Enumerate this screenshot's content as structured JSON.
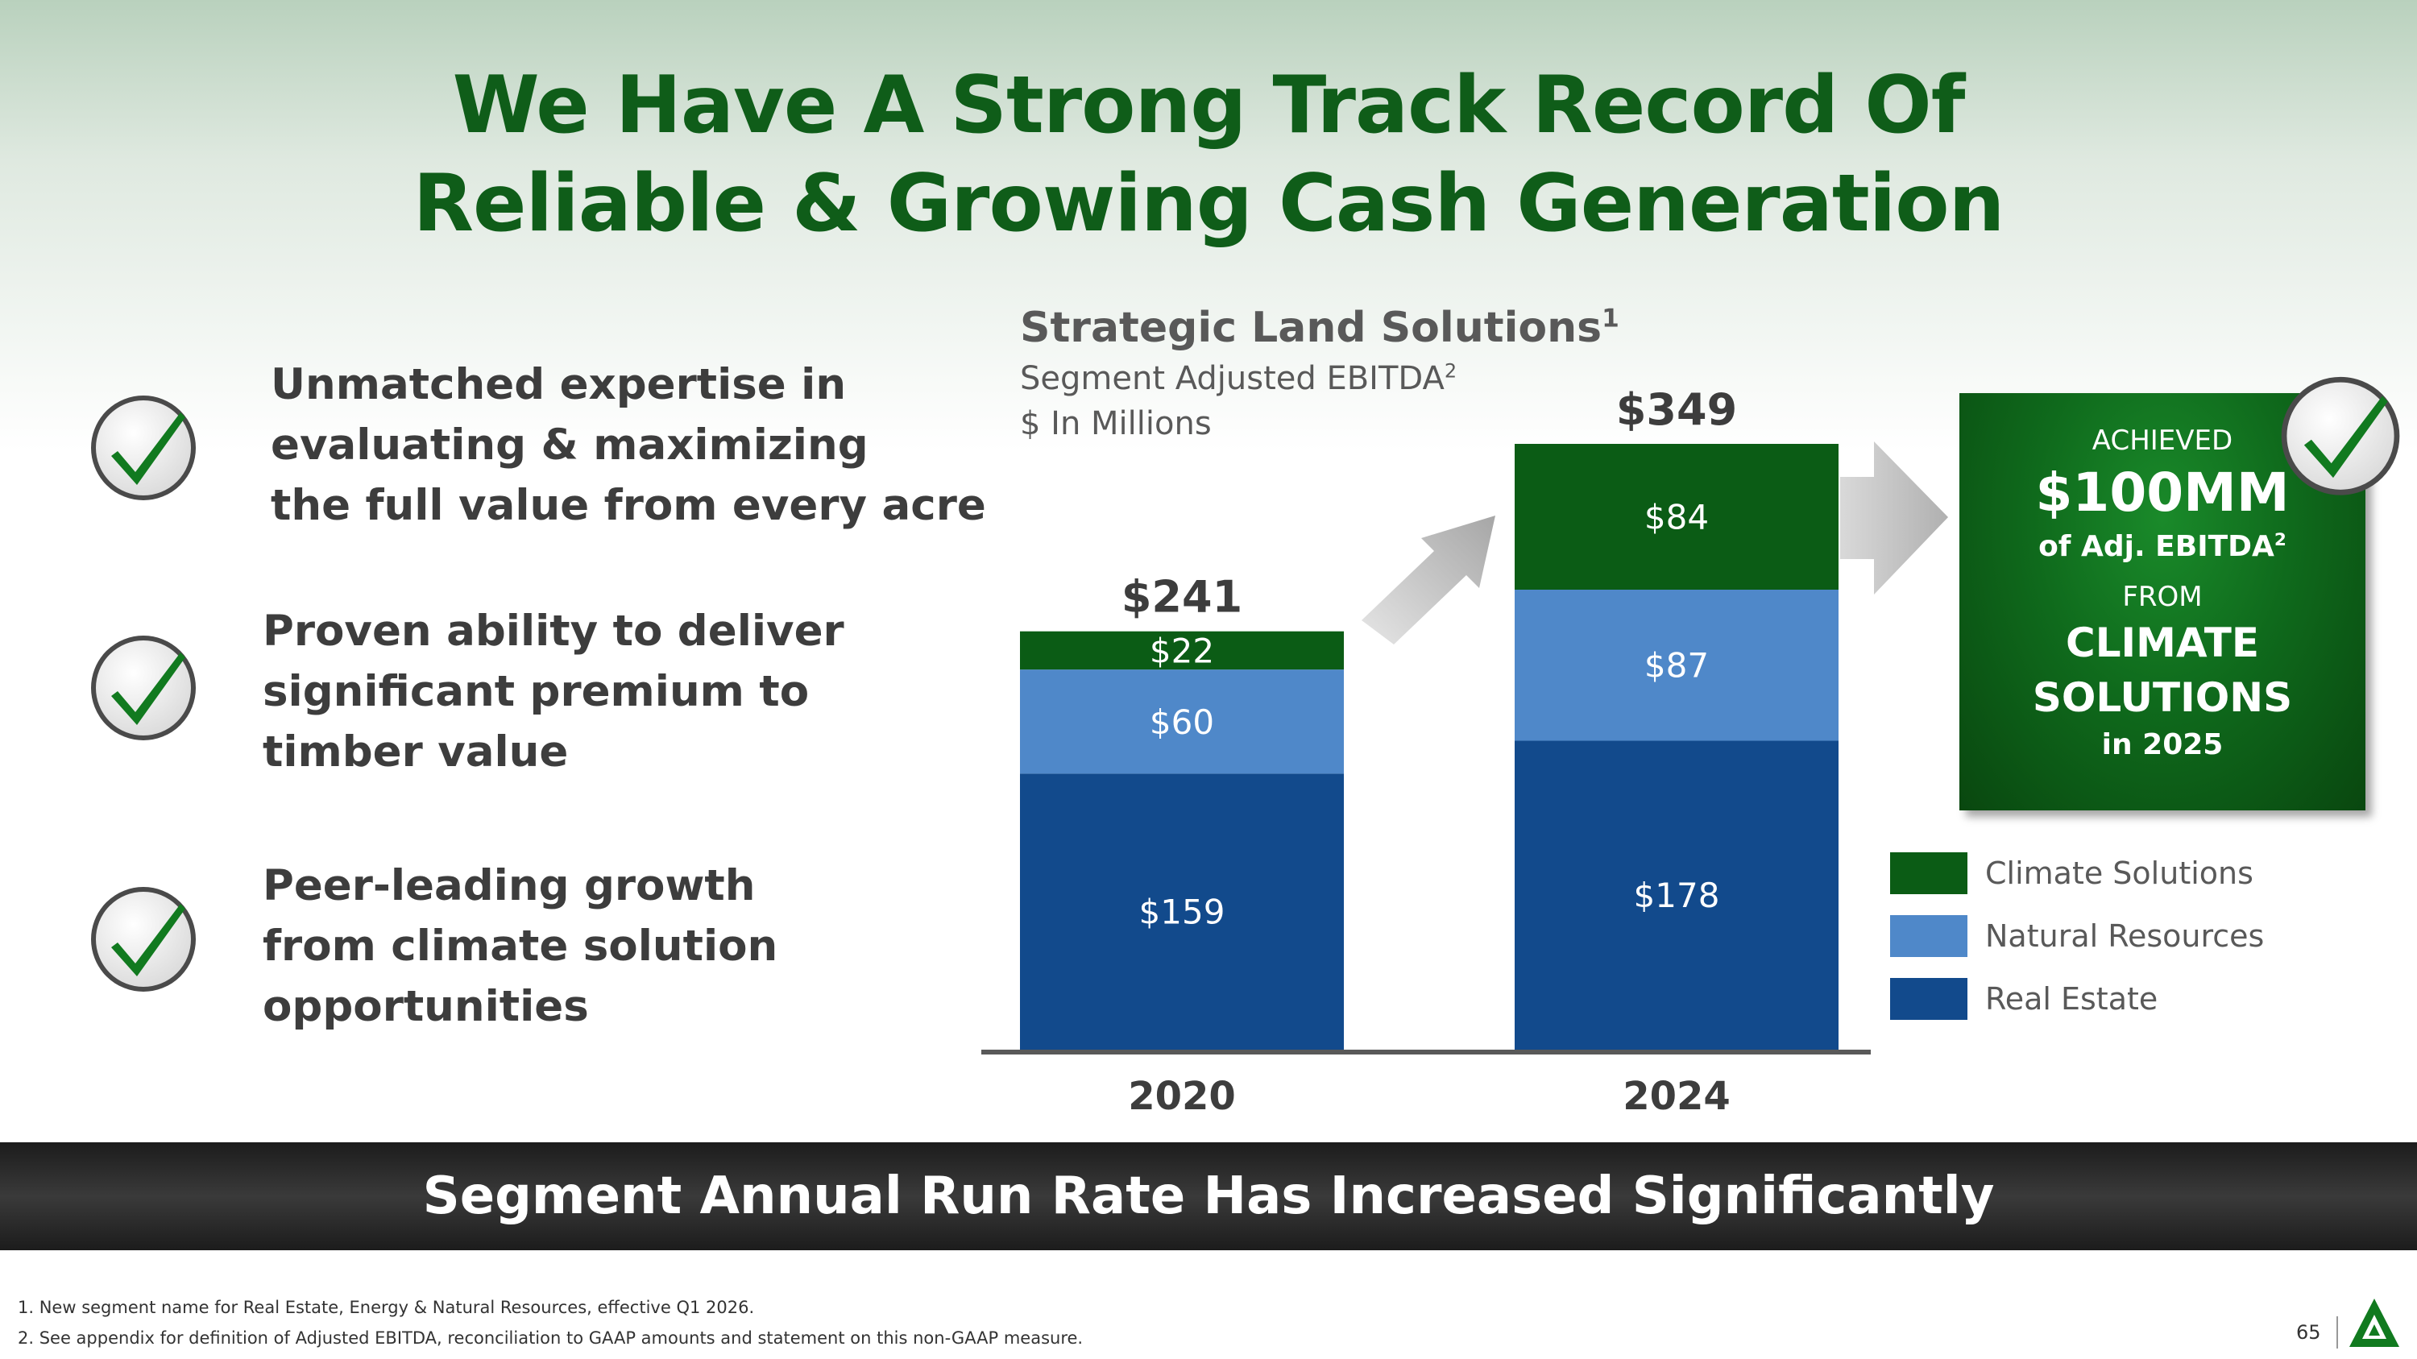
{
  "title": {
    "line1": "We Have A Strong Track Record Of",
    "line2": "Reliable & Growing Cash Generation"
  },
  "bullets": [
    {
      "lines": [
        "Unmatched expertise in",
        "evaluating & maximizing",
        "the full value from every acre"
      ],
      "icon": "check-icon"
    },
    {
      "lines": [
        "Proven ability to deliver",
        "significant premium to",
        "timber value"
      ],
      "icon": "check-icon"
    },
    {
      "lines": [
        "Peer-leading growth",
        "from climate solution",
        "opportunities"
      ],
      "icon": "check-icon"
    }
  ],
  "chart_header": {
    "title": "Strategic Land Solutions",
    "title_sup": "1",
    "subtitle": "Segment Adjusted EBITDA",
    "subtitle_sup": "2",
    "unit": "$ In Millions"
  },
  "callout": {
    "achieved": "ACHIEVED",
    "amount": "$100MM",
    "metric": "of Adj. EBITDA",
    "metric_sup": "2",
    "from": "FROM",
    "line1": "CLIMATE",
    "line2": "SOLUTIONS",
    "year": "in 2025",
    "icon": "check-icon"
  },
  "banner": "Segment Annual Run Rate Has Increased Significantly",
  "footnotes": [
    "1. New segment name for Real Estate, Energy & Natural Resources, effective Q1 2026.",
    "2. See appendix for definition of Adjusted EBITDA, reconciliation to GAAP amounts and statement on this non-GAAP measure."
  ],
  "page_number": "65",
  "logo_icon": "company-logo-icon",
  "colors": {
    "title_green": "#0f5d19",
    "real_estate": "#124a8c",
    "natural_resources": "#4f88c9",
    "climate_solutions": "#0b5c15"
  },
  "chart_data": {
    "type": "bar",
    "stacked": true,
    "title": "Strategic Land Solutions",
    "ylabel": "$ In Millions",
    "categories": [
      "2020",
      "2024"
    ],
    "series": [
      {
        "name": "Real Estate",
        "values": [
          159,
          178
        ],
        "labels": [
          "$159",
          "$178"
        ],
        "color": "#124a8c"
      },
      {
        "name": "Natural Resources",
        "values": [
          60,
          87
        ],
        "labels": [
          "$60",
          "$87"
        ],
        "color": "#4f88c9"
      },
      {
        "name": "Climate Solutions",
        "values": [
          22,
          84
        ],
        "labels": [
          "$22",
          "$84"
        ],
        "color": "#0b5c15"
      }
    ],
    "totals": [
      241,
      349
    ],
    "total_labels": [
      "$241",
      "$349"
    ],
    "ylim": [
      0,
      349
    ],
    "legend": "right",
    "legend_order": [
      "Climate Solutions",
      "Natural Resources",
      "Real Estate"
    ]
  }
}
